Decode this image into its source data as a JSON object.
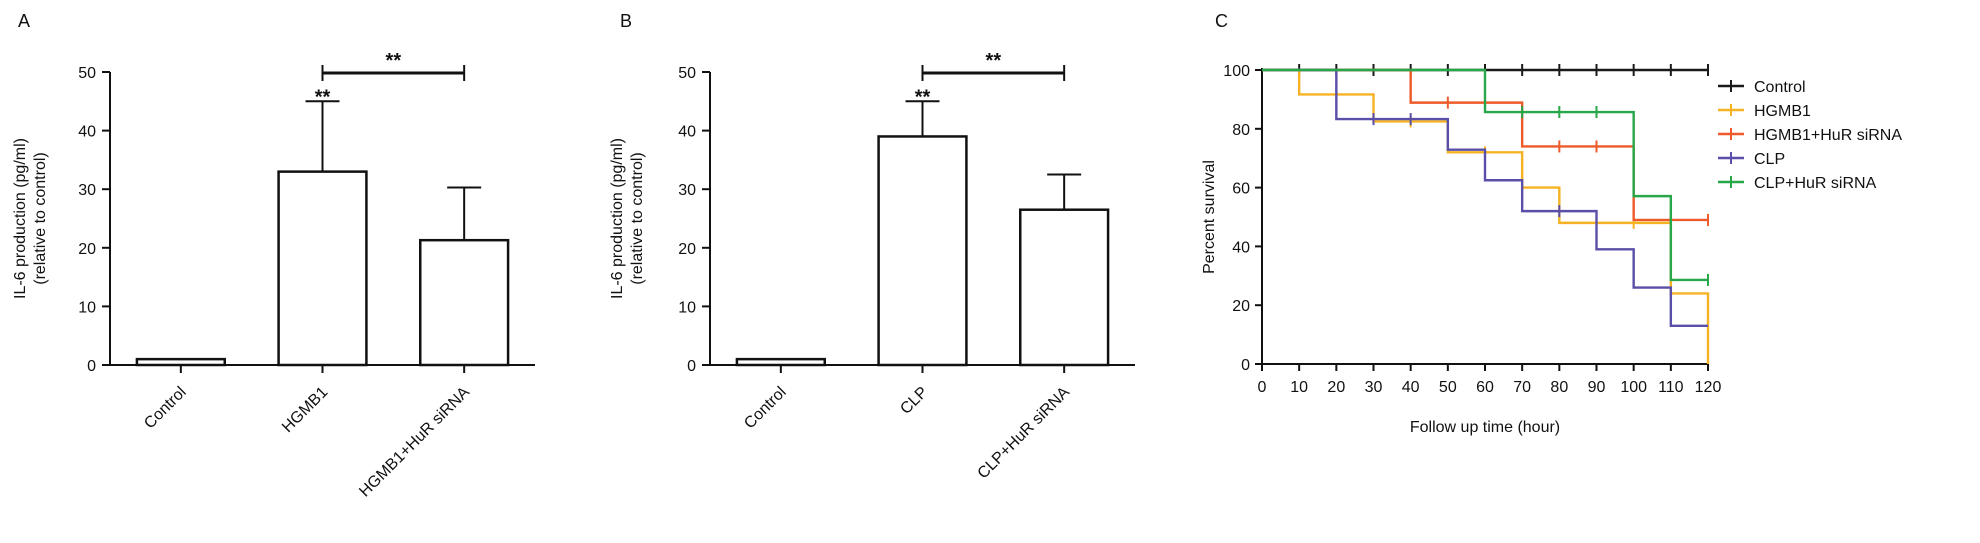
{
  "colors": {
    "axis": "#111111",
    "bar_fill": "#ffffff",
    "Control": "#1a1a1a",
    "HGMB1": "#f5b324",
    "HGMB1+HuR siRNA": "#ee5a2a",
    "CLP": "#5a4fa8",
    "CLP+HuR siRNA": "#27a64a"
  },
  "chart_data": [
    {
      "panel": "A",
      "type": "bar",
      "ylabel": [
        "IL-6 production (pg/ml)",
        "(relative to control)"
      ],
      "ylim": [
        0,
        50
      ],
      "yticks": [
        0,
        10,
        20,
        30,
        40,
        50
      ],
      "categories": [
        "Control",
        "HGMB1",
        "HGMB1+HuR siRNA"
      ],
      "values": [
        1,
        33,
        21.3
      ],
      "errors": [
        0.2,
        12,
        9
      ],
      "annotations": [
        {
          "label": "**",
          "type": "above-bar",
          "bar": 1
        },
        {
          "label": "**",
          "type": "bracket",
          "from": 1,
          "to": 2,
          "y": 50
        }
      ]
    },
    {
      "panel": "B",
      "type": "bar",
      "ylabel": [
        "IL-6 production (pg/ml)",
        "(relative to control)"
      ],
      "ylim": [
        0,
        50
      ],
      "yticks": [
        0,
        10,
        20,
        30,
        40,
        50
      ],
      "categories": [
        "Control",
        "CLP",
        "CLP+HuR siRNA"
      ],
      "values": [
        1,
        39,
        26.5
      ],
      "errors": [
        0.2,
        6,
        6
      ],
      "annotations": [
        {
          "label": "**",
          "type": "above-bar",
          "bar": 1
        },
        {
          "label": "**",
          "type": "bracket",
          "from": 1,
          "to": 2,
          "y": 50
        }
      ]
    },
    {
      "panel": "C",
      "type": "line",
      "step": true,
      "xlabel": "Follow up time (hour)",
      "ylabel": "Percent survival",
      "xlim": [
        0,
        120
      ],
      "ylim": [
        0,
        100
      ],
      "xticks": [
        0,
        10,
        20,
        30,
        40,
        50,
        60,
        70,
        80,
        90,
        100,
        110,
        120
      ],
      "yticks": [
        0,
        20,
        40,
        60,
        80,
        100
      ],
      "legend_position": "right",
      "series": [
        {
          "name": "Control",
          "points": [
            [
              0,
              100
            ],
            [
              120,
              100
            ]
          ],
          "censor": [
            10,
            20,
            30,
            40,
            50,
            60,
            70,
            80,
            90,
            100,
            110,
            120
          ]
        },
        {
          "name": "HGMB1",
          "points": [
            [
              0,
              100
            ],
            [
              10,
              91.7
            ],
            [
              30,
              82.5
            ],
            [
              50,
              72
            ],
            [
              70,
              60
            ],
            [
              80,
              48
            ],
            [
              100,
              48
            ],
            [
              110,
              24
            ],
            [
              120,
              0
            ]
          ],
          "censor": [
            20,
            40,
            60,
            90,
            100
          ]
        },
        {
          "name": "HGMB1+HuR siRNA",
          "points": [
            [
              0,
              100
            ],
            [
              40,
              88.9
            ],
            [
              70,
              74
            ],
            [
              100,
              49
            ],
            [
              120,
              49
            ]
          ],
          "censor": [
            50,
            60,
            80,
            90,
            110,
            120
          ]
        },
        {
          "name": "CLP",
          "points": [
            [
              0,
              100
            ],
            [
              20,
              83.3
            ],
            [
              50,
              72.9
            ],
            [
              60,
              62.5
            ],
            [
              70,
              52
            ],
            [
              90,
              39
            ],
            [
              100,
              26
            ],
            [
              110,
              13
            ],
            [
              120,
              13
            ]
          ],
          "censor": [
            30,
            40,
            80
          ]
        },
        {
          "name": "CLP+HuR siRNA",
          "points": [
            [
              0,
              100
            ],
            [
              60,
              85.7
            ],
            [
              100,
              57.1
            ],
            [
              110,
              28.6
            ],
            [
              120,
              28.6
            ]
          ],
          "censor": [
            70,
            80,
            90,
            120
          ]
        }
      ]
    }
  ],
  "panels": {
    "a": "A",
    "b": "B",
    "c": "C"
  }
}
